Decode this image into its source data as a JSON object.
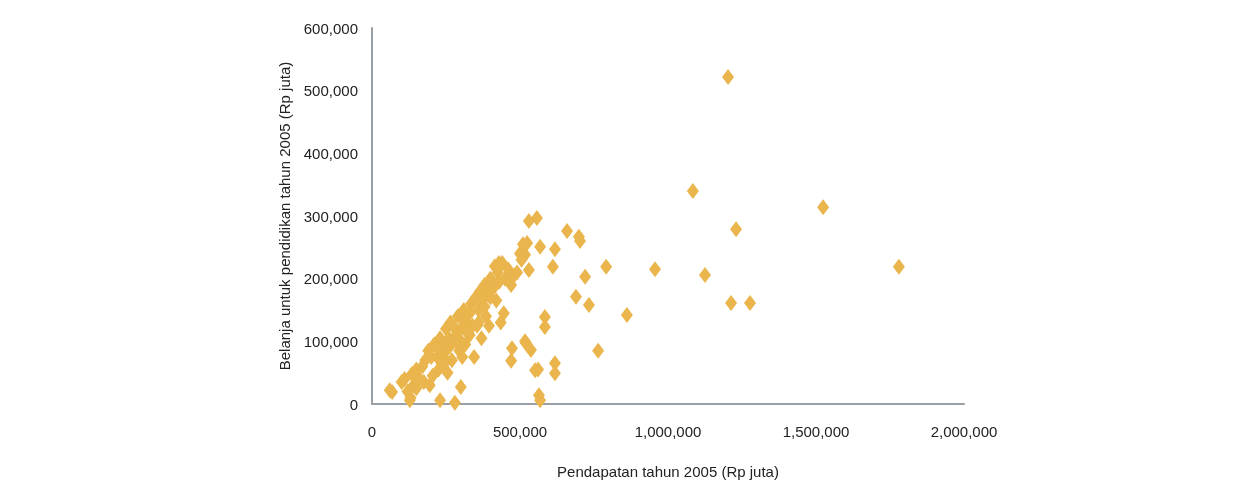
{
  "chart_data": {
    "type": "scatter",
    "xlabel": "Pendapatan tahun 2005 (Rp juta)",
    "ylabel": "Belanja untuk pendidikan tahun 2005 (Rp juta)",
    "marker": "diamond",
    "grid": false,
    "xlim": [
      0,
      2000000
    ],
    "ylim": [
      0,
      600000
    ],
    "xticks": [
      {
        "value": 0,
        "label": "0"
      },
      {
        "value": 500000,
        "label": "500,000"
      },
      {
        "value": 1000000,
        "label": "1,000,000"
      },
      {
        "value": 1500000,
        "label": "1,500,000"
      },
      {
        "value": 2000000,
        "label": "2,000,000"
      }
    ],
    "yticks": [
      {
        "value": 0,
        "label": "0"
      },
      {
        "value": 100000,
        "label": "100,000"
      },
      {
        "value": 200000,
        "label": "200,000"
      },
      {
        "value": 300000,
        "label": "300,000"
      },
      {
        "value": 400000,
        "label": "400,000"
      },
      {
        "value": 500000,
        "label": "500,000"
      },
      {
        "value": 600000,
        "label": "600,000"
      }
    ],
    "series": [
      {
        "color": "#e9b54c",
        "x": [
          1203000,
          1084000,
          1524000,
          1230000,
          1125000,
          1780000,
          1213000,
          1277000,
          956000,
          791000,
          659000,
          703000,
          720000,
          689000,
          733000,
          861000,
          764000,
          557000,
          530000,
          618000,
          611000,
          584000,
          584000,
          618000,
          618000,
          561000,
          551000,
          520000,
          537000,
          564000,
          568000,
          473000,
          470000,
          517000,
          699000,
          568000,
          524000,
          517000,
          530000,
          429000,
          68000,
          128000,
          230000,
          280000,
          300000,
          60000,
          100000,
          110000,
          120000,
          130000,
          135000,
          140000,
          150000,
          150000,
          160000,
          170000,
          175000,
          180000,
          190000,
          195000,
          205000,
          210000,
          220000,
          225000,
          230000,
          240000,
          245000,
          250000,
          255000,
          260000,
          265000,
          270000,
          275000,
          285000,
          290000,
          295000,
          300000,
          305000,
          310000,
          315000,
          320000,
          330000,
          335000,
          345000,
          350000,
          355000,
          360000,
          365000,
          370000,
          380000,
          385000,
          390000,
          395000,
          400000,
          410000,
          415000,
          420000,
          425000,
          430000,
          435000,
          440000,
          445000,
          450000,
          460000,
          470000,
          480000,
          490000,
          500000,
          505000,
          510000,
          200000,
          240000,
          260000,
          280000,
          300000,
          320000,
          340000,
          360000,
          380000,
          400000,
          230000,
          250000,
          290000,
          310000,
          330000,
          370000
        ],
        "values": [
          522000,
          340000,
          314000,
          279000,
          206000,
          219000,
          161000,
          161000,
          215000,
          219000,
          276000,
          260000,
          203000,
          171000,
          158000,
          142000,
          85000,
          297000,
          292000,
          247000,
          219000,
          139000,
          123000,
          65000,
          49000,
          55000,
          54000,
          97000,
          86000,
          14000,
          6000,
          89000,
          69000,
          100000,
          267000,
          251000,
          257000,
          238000,
          214000,
          225000,
          19000,
          6000,
          6000,
          2000,
          27000,
          22000,
          35000,
          40000,
          20000,
          10000,
          48000,
          30000,
          25000,
          55000,
          40000,
          60000,
          35000,
          70000,
          85000,
          30000,
          45000,
          95000,
          75000,
          55000,
          105000,
          80000,
          65000,
          120000,
          50000,
          90000,
          130000,
          70000,
          100000,
          110000,
          140000,
          85000,
          120000,
          75000,
          150000,
          95000,
          130000,
          110000,
          160000,
          75000,
          170000,
          125000,
          150000,
          180000,
          105000,
          190000,
          140000,
          175000,
          125000,
          200000,
          185000,
          220000,
          165000,
          210000,
          195000,
          130000,
          225000,
          145000,
          200000,
          215000,
          190000,
          205000,
          210000,
          240000,
          230000,
          255000,
          75000,
          95000,
          105000,
          120000,
          100000,
          115000,
          125000,
          130000,
          155000,
          170000,
          85000,
          70000,
          95000,
          135000,
          145000,
          165000
        ]
      }
    ]
  }
}
